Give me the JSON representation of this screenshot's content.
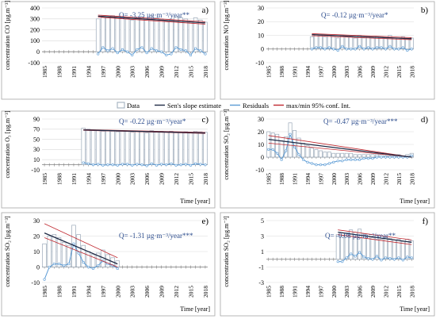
{
  "colors": {
    "bar_fill": "#ffffff",
    "bar_stroke": "#9aa8b8",
    "sen_line": "#1f2a44",
    "residuals": "#5b9bd5",
    "conf_band": "#c0282f",
    "trend_text": "#2f4f8f",
    "axis": "#808080",
    "grid": "#d9d9d9",
    "panel_border": "#a6a6a6"
  },
  "legend": {
    "data": "Data",
    "sen": "Sen's slope estimate",
    "residuals": "Residuals",
    "conf": "max/min 95% conf. Int."
  },
  "chart_data": [
    {
      "type": "bar",
      "panel_label": "a)",
      "ylabel": "concentration CO [µg.m⁻³]",
      "xlabel": "",
      "annotation": "Q= -3.25 µg·m⁻³/year**",
      "ylim": [
        -100,
        400
      ],
      "yticks": [
        "-100",
        "0",
        "100",
        "200",
        "300",
        "400"
      ],
      "xlim": [
        1985,
        2019
      ],
      "xticks": [
        "1985",
        "1988",
        "1991",
        "1994",
        "1997",
        "2000",
        "2003",
        "2006",
        "2009",
        "2012",
        "2015",
        "2018"
      ],
      "grid": true,
      "start_year": 1996,
      "values": [
        300,
        320,
        310,
        330,
        315,
        320,
        300,
        290,
        310,
        320,
        300,
        330,
        310,
        300,
        280,
        290,
        320,
        310,
        300,
        280,
        310,
        290,
        270
      ],
      "residuals": [
        -20,
        40,
        10,
        30,
        -10,
        20,
        0,
        -30,
        20,
        40,
        -10,
        30,
        10,
        0,
        -30,
        -20,
        40,
        20,
        10,
        -30,
        30,
        10,
        -20
      ],
      "sen": [
        325,
        263
      ],
      "band_upper": [
        335,
        274
      ],
      "band_lower": [
        316,
        252
      ]
    },
    {
      "type": "bar",
      "panel_label": "b)",
      "ylabel": "concentration NO [µg.m⁻³]",
      "xlabel": "",
      "annotation": "Q= -0.12 µg·m⁻³/year*",
      "ylim": [
        -10,
        30
      ],
      "yticks": [
        "-10",
        "0",
        "10",
        "20",
        "30"
      ],
      "xlim": [
        1985,
        2019
      ],
      "xticks": [
        "1985",
        "1988",
        "1991",
        "1994",
        "1997",
        "2000",
        "2003",
        "2006",
        "2009",
        "2012",
        "2015",
        "2018"
      ],
      "grid": true,
      "start_year": 1995,
      "values": [
        9,
        11,
        10,
        9,
        10,
        9,
        8,
        10,
        9,
        9,
        8,
        10,
        8,
        9,
        8,
        9,
        9,
        8,
        10,
        8,
        8,
        9,
        7,
        8
      ],
      "residuals": [
        0,
        1,
        1,
        0,
        1,
        0,
        -1,
        2,
        0,
        0,
        0,
        2,
        0,
        1,
        0,
        1,
        1,
        0,
        2,
        0,
        0,
        1,
        -1,
        0
      ],
      "sen": [
        10.5,
        7.5
      ],
      "band_upper": [
        11.2,
        8.3
      ],
      "band_lower": [
        9.7,
        6.8
      ]
    },
    {
      "type": "bar",
      "panel_label": "c)",
      "ylabel": "concentration O₃ [µg.m⁻³]",
      "xlabel": "Time [year]",
      "annotation": "Q= -0.22 µg·m⁻³/year*",
      "ylim": [
        -10,
        90
      ],
      "yticks": [
        "-10",
        "10",
        "30",
        "50",
        "70",
        "90"
      ],
      "xlim": [
        1985,
        2019
      ],
      "xticks": [
        "1985",
        "1988",
        "1991",
        "1994",
        "1997",
        "2000",
        "2003",
        "2006",
        "2009",
        "2012",
        "2015",
        "2018"
      ],
      "grid": true,
      "start_year": 1993,
      "values": [
        72,
        70,
        68,
        68,
        66,
        67,
        66,
        65,
        67,
        66,
        64,
        66,
        65,
        63,
        67,
        64,
        66,
        65,
        66,
        63,
        64,
        65,
        63,
        66,
        65,
        64
      ],
      "residuals": [
        4,
        2,
        0,
        1,
        -1,
        0,
        0,
        -1,
        1,
        1,
        -1,
        1,
        0,
        -2,
        2,
        -1,
        1,
        0,
        2,
        -1,
        0,
        1,
        -1,
        2,
        1,
        0
      ],
      "sen": [
        68.5,
        62.5
      ],
      "band_upper": [
        69.3,
        63.6
      ],
      "band_lower": [
        67.8,
        61.6
      ]
    },
    {
      "type": "bar",
      "panel_label": "d)",
      "ylabel": "concentration SO₂ [µg.m⁻³]",
      "xlabel": "Time [year]",
      "annotation": "Q= -0.47 µg·m⁻³/year***",
      "ylim": [
        -10,
        30
      ],
      "yticks": [
        "-10",
        "0",
        "10",
        "20",
        "30"
      ],
      "xlim": [
        1985,
        2019
      ],
      "xticks": [
        "1985",
        "1988",
        "1991",
        "1994",
        "1997",
        "2000",
        "2003",
        "2006",
        "2009",
        "2012",
        "2015",
        "2018"
      ],
      "grid": true,
      "start_year": 1985,
      "values": [
        20,
        19,
        18,
        13,
        16,
        27,
        21,
        15,
        11,
        9,
        7,
        6,
        5,
        4,
        4,
        3,
        3,
        3,
        3,
        3,
        2,
        2,
        2,
        2,
        2,
        2,
        2,
        1,
        1,
        1,
        2,
        1,
        2,
        3
      ],
      "residuals": [
        6,
        6,
        3,
        -2,
        5,
        18,
        8,
        2,
        -2,
        -4,
        -5,
        -6,
        -6,
        -6,
        -5,
        -4,
        -3,
        -3,
        -2,
        -2,
        -2,
        -2,
        -1,
        -1,
        -1,
        0,
        0,
        0,
        0,
        0,
        0,
        0,
        0,
        1
      ],
      "sen": [
        14,
        0
      ],
      "band_upper": [
        17,
        0
      ],
      "band_lower": [
        11,
        0
      ]
    },
    {
      "type": "bar",
      "panel_label": "e)",
      "ylabel": "concentration SO₂ [µg.m⁻³]",
      "xlabel": "Time [year]",
      "annotation": "Q= -1.31 µg·m⁻³/year***",
      "ylim": [
        -10,
        30
      ],
      "yticks": [
        "-10",
        "0",
        "10",
        "20",
        "30"
      ],
      "xlim": [
        1985,
        2019
      ],
      "xticks": [
        "1985",
        "1988",
        "1991",
        "1994",
        "1997",
        "2000",
        "2003",
        "2006",
        "2009",
        "2012",
        "2015",
        "2018"
      ],
      "grid": true,
      "start_year": 1985,
      "values": [
        15,
        20,
        21,
        19,
        16,
        14,
        27,
        21,
        14,
        10,
        8,
        9,
        11,
        8,
        6,
        4
      ],
      "residuals": [
        -8,
        0,
        2,
        2,
        1,
        2,
        15,
        9,
        3,
        0,
        -1,
        1,
        4,
        2,
        1,
        -1
      ],
      "sen": [
        22,
        2
      ],
      "band_upper": [
        28,
        6
      ],
      "band_lower": [
        19,
        0
      ]
    },
    {
      "type": "bar",
      "panel_label": "f)",
      "ylabel": "concentration SO₂ [µg.m⁻³]",
      "xlabel": "Time [year]",
      "annotation": "Q= -0.08 µg·m⁻³/year**",
      "ylim": [
        -3,
        5
      ],
      "yticks": [
        "-3",
        "-1",
        "1",
        "3",
        "5"
      ],
      "xlim": [
        1985,
        2019
      ],
      "xticks": [
        "1985",
        "1988",
        "1991",
        "1994",
        "1997",
        "2000",
        "2003",
        "2006",
        "2009",
        "2012",
        "2015",
        "2018"
      ],
      "grid": true,
      "start_year": 2001,
      "values": [
        3.2,
        3.0,
        3.4,
        3.8,
        3.5,
        3.9,
        3.3,
        3.0,
        2.8,
        3.1,
        2.6,
        2.9,
        2.7,
        2.5,
        2.6,
        2.3,
        2.6,
        2.4
      ],
      "residuals": [
        -0.3,
        -0.3,
        0.2,
        0.7,
        0.4,
        0.9,
        0.3,
        0.1,
        0.0,
        0.4,
        -0.1,
        0.2,
        0.1,
        0.0,
        0.2,
        -0.1,
        0.3,
        0.2
      ],
      "sen": [
        3.5,
        2.2
      ],
      "band_upper": [
        3.8,
        2.5
      ],
      "band_lower": [
        3.2,
        1.9
      ]
    }
  ]
}
